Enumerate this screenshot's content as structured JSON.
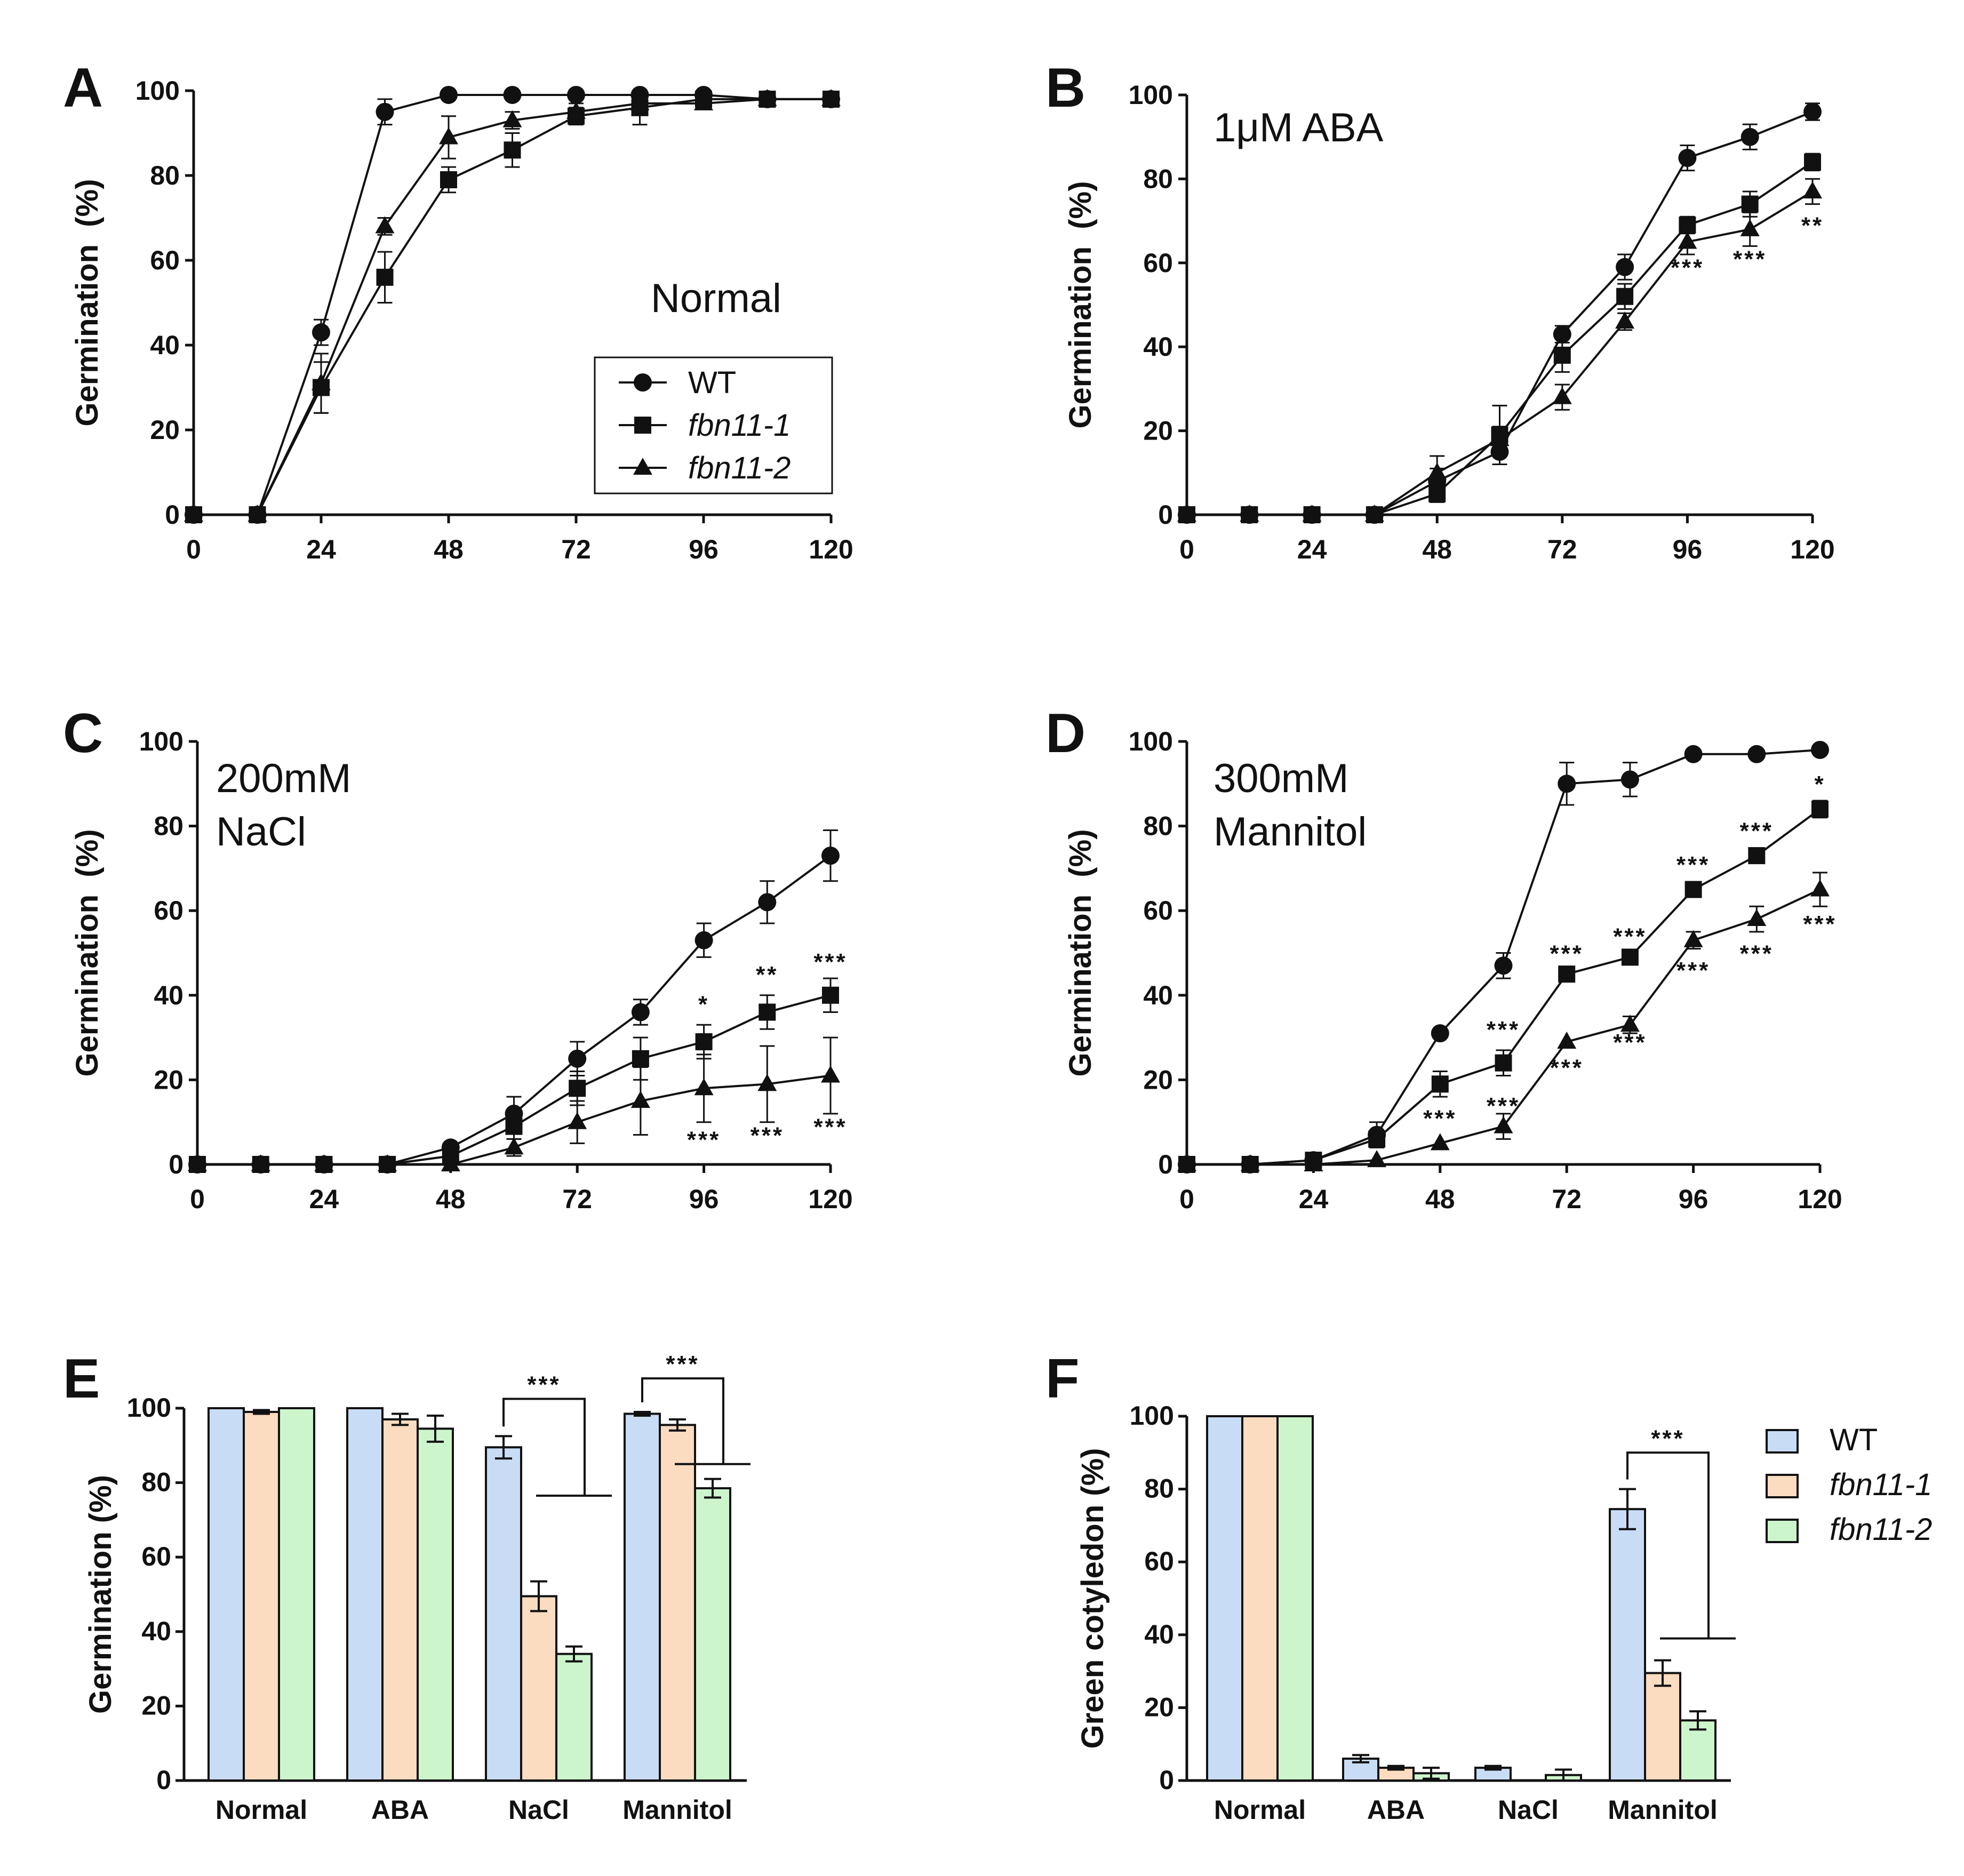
{
  "figure": {
    "panel_labels": [
      "A",
      "B",
      "C",
      "D",
      "E",
      "F"
    ]
  },
  "colors": {
    "line": "#111111",
    "wt_fill": "#c9dcf5",
    "fbn11_1_fill": "#fbdcc0",
    "fbn11_2_fill": "#ccf5cc"
  },
  "chart_data": [
    {
      "panel": "A",
      "type": "line",
      "title": "",
      "condition_lines": [
        "Normal"
      ],
      "xlabel": "",
      "ylabel": "Germination  (%)",
      "xlim": [
        0,
        120
      ],
      "ylim": [
        0,
        100
      ],
      "xticks": [
        "0",
        "24",
        "48",
        "72",
        "96",
        "120"
      ],
      "yticks": [
        "0",
        "20",
        "40",
        "60",
        "80",
        "100"
      ],
      "legend": [
        {
          "name": "WT",
          "marker": "circle",
          "italic": false
        },
        {
          "name": "fbn11-1",
          "marker": "square",
          "italic": true
        },
        {
          "name": "fbn11-2",
          "marker": "triangle",
          "italic": true
        }
      ],
      "series": [
        {
          "name": "WT",
          "marker": "circle",
          "x": [
            0,
            12,
            24,
            36,
            48,
            60,
            72,
            84,
            96,
            108,
            120
          ],
          "y": [
            0,
            0,
            43,
            95,
            99,
            99,
            99,
            99,
            99,
            98,
            98
          ],
          "err": [
            0,
            0,
            3,
            3,
            0,
            0,
            0,
            0,
            0,
            1,
            1
          ]
        },
        {
          "name": "fbn11-1",
          "marker": "square",
          "x": [
            0,
            12,
            24,
            36,
            48,
            60,
            72,
            84,
            96,
            108,
            120
          ],
          "y": [
            0,
            0,
            30,
            56,
            79,
            86,
            94,
            96,
            98,
            98,
            98
          ],
          "err": [
            0,
            0,
            6,
            6,
            3,
            4,
            2,
            4,
            1,
            1,
            1
          ]
        },
        {
          "name": "fbn11-2",
          "marker": "triangle",
          "x": [
            0,
            12,
            24,
            36,
            48,
            60,
            72,
            84,
            96,
            108,
            120
          ],
          "y": [
            0,
            0,
            31,
            68,
            89,
            93,
            95,
            97,
            97,
            98,
            98
          ],
          "err": [
            0,
            0,
            7,
            2,
            5,
            2,
            2,
            1,
            1,
            1,
            1
          ]
        }
      ],
      "annotations": []
    },
    {
      "panel": "B",
      "type": "line",
      "title": "",
      "condition_lines": [
        "1μM ABA"
      ],
      "xlabel": "",
      "ylabel": "Germination  (%)",
      "xlim": [
        0,
        120
      ],
      "ylim": [
        0,
        100
      ],
      "xticks": [
        "0",
        "24",
        "48",
        "72",
        "96",
        "120"
      ],
      "yticks": [
        "0",
        "20",
        "40",
        "60",
        "80",
        "100"
      ],
      "series": [
        {
          "name": "WT",
          "marker": "circle",
          "x": [
            0,
            12,
            24,
            36,
            48,
            60,
            72,
            84,
            96,
            108,
            120
          ],
          "y": [
            0,
            0,
            0,
            0,
            8,
            15,
            43,
            59,
            85,
            90,
            96
          ],
          "err": [
            0,
            0,
            0,
            0,
            3,
            3,
            2,
            3,
            3,
            3,
            2
          ]
        },
        {
          "name": "fbn11-1",
          "marker": "square",
          "x": [
            0,
            12,
            24,
            36,
            48,
            60,
            72,
            84,
            96,
            108,
            120
          ],
          "y": [
            0,
            0,
            0,
            0,
            5,
            19,
            38,
            52,
            69,
            74,
            84
          ],
          "err": [
            0,
            0,
            0,
            0,
            2,
            7,
            4,
            3,
            2,
            3,
            2
          ]
        },
        {
          "name": "fbn11-2",
          "marker": "triangle",
          "x": [
            0,
            12,
            24,
            36,
            48,
            60,
            72,
            84,
            96,
            108,
            120
          ],
          "y": [
            0,
            0,
            0,
            0,
            10,
            18,
            28,
            46,
            65,
            68,
            77
          ],
          "err": [
            0,
            0,
            0,
            0,
            4,
            3,
            3,
            2,
            3,
            4,
            3
          ]
        }
      ],
      "annotations": [
        {
          "text": "***",
          "x": 96,
          "y": 57
        },
        {
          "text": "***",
          "x": 108,
          "y": 59
        },
        {
          "text": "**",
          "x": 120,
          "y": 67
        }
      ]
    },
    {
      "panel": "C",
      "type": "line",
      "title": "",
      "condition_lines": [
        "200mM",
        "NaCl"
      ],
      "xlabel": "",
      "ylabel": "Germination  (%)",
      "xlim": [
        0,
        120
      ],
      "ylim": [
        0,
        100
      ],
      "xticks": [
        "0",
        "24",
        "48",
        "72",
        "96",
        "120"
      ],
      "yticks": [
        "0",
        "20",
        "40",
        "60",
        "80",
        "100"
      ],
      "series": [
        {
          "name": "WT",
          "marker": "circle",
          "x": [
            0,
            12,
            24,
            36,
            48,
            60,
            72,
            84,
            96,
            108,
            120
          ],
          "y": [
            0,
            0,
            0,
            0,
            4,
            12,
            25,
            36,
            53,
            62,
            73
          ],
          "err": [
            0,
            0,
            0,
            0,
            1,
            4,
            4,
            3,
            4,
            5,
            6
          ]
        },
        {
          "name": "fbn11-1",
          "marker": "square",
          "x": [
            0,
            12,
            24,
            36,
            48,
            60,
            72,
            84,
            96,
            108,
            120
          ],
          "y": [
            0,
            0,
            0,
            0,
            2,
            9,
            18,
            25,
            29,
            36,
            40
          ],
          "err": [
            0,
            0,
            0,
            0,
            1,
            3,
            4,
            5,
            4,
            4,
            4
          ]
        },
        {
          "name": "fbn11-2",
          "marker": "triangle",
          "x": [
            0,
            12,
            24,
            36,
            48,
            60,
            72,
            84,
            96,
            108,
            120
          ],
          "y": [
            0,
            0,
            0,
            0,
            0,
            4,
            10,
            15,
            18,
            19,
            21
          ],
          "err": [
            0,
            0,
            0,
            0,
            0,
            2,
            5,
            8,
            8,
            9,
            9
          ]
        }
      ],
      "annotations": [
        {
          "text": "*",
          "x": 96,
          "y": 36
        },
        {
          "text": "**",
          "x": 108,
          "y": 43
        },
        {
          "text": "***",
          "x": 120,
          "y": 46
        },
        {
          "text": "***",
          "x": 96,
          "y": 4
        },
        {
          "text": "***",
          "x": 108,
          "y": 5
        },
        {
          "text": "***",
          "x": 120,
          "y": 7
        }
      ]
    },
    {
      "panel": "D",
      "type": "line",
      "title": "",
      "condition_lines": [
        "300mM",
        "Mannitol"
      ],
      "xlabel": "",
      "ylabel": "Germination  (%)",
      "xlim": [
        0,
        120
      ],
      "ylim": [
        0,
        100
      ],
      "xticks": [
        "0",
        "24",
        "48",
        "72",
        "96",
        "120"
      ],
      "yticks": [
        "0",
        "20",
        "40",
        "60",
        "80",
        "100"
      ],
      "series": [
        {
          "name": "WT",
          "marker": "circle",
          "x": [
            0,
            12,
            24,
            36,
            48,
            60,
            72,
            84,
            96,
            108,
            120
          ],
          "y": [
            0,
            0,
            1,
            7,
            31,
            47,
            90,
            91,
            97,
            97,
            98
          ],
          "err": [
            0,
            1,
            0,
            3,
            0,
            3,
            5,
            4,
            0,
            0,
            0
          ]
        },
        {
          "name": "fbn11-1",
          "marker": "square",
          "x": [
            0,
            12,
            24,
            36,
            48,
            60,
            72,
            84,
            96,
            108,
            120
          ],
          "y": [
            0,
            0,
            1,
            6,
            19,
            24,
            45,
            49,
            65,
            73,
            84
          ],
          "err": [
            0,
            0,
            0,
            2,
            3,
            3,
            1,
            1,
            1,
            1,
            2
          ]
        },
        {
          "name": "fbn11-2",
          "marker": "triangle",
          "x": [
            0,
            12,
            24,
            36,
            48,
            60,
            72,
            84,
            96,
            108,
            120
          ],
          "y": [
            0,
            0,
            0,
            1,
            5,
            9,
            29,
            33,
            53,
            58,
            65
          ],
          "err": [
            0,
            0,
            0,
            0,
            0,
            3,
            0,
            2,
            2,
            3,
            4
          ]
        }
      ],
      "annotations": [
        {
          "text": "*",
          "x": 120,
          "y": 88
        },
        {
          "text": "***",
          "x": 108,
          "y": 77
        },
        {
          "text": "***",
          "x": 96,
          "y": 69
        },
        {
          "text": "***",
          "x": 84,
          "y": 52
        },
        {
          "text": "***",
          "x": 72,
          "y": 48
        },
        {
          "text": "***",
          "x": 60,
          "y": 30
        },
        {
          "text": "***",
          "x": 120,
          "y": 55
        },
        {
          "text": "***",
          "x": 108,
          "y": 48
        },
        {
          "text": "***",
          "x": 96,
          "y": 44
        },
        {
          "text": "***",
          "x": 84,
          "y": 27
        },
        {
          "text": "***",
          "x": 72,
          "y": 21
        },
        {
          "text": "***",
          "x": 60,
          "y": 12
        },
        {
          "text": "***",
          "x": 48,
          "y": 9
        }
      ]
    },
    {
      "panel": "E",
      "type": "bar",
      "title": "",
      "xlabel": "",
      "ylabel": "Germination (%)",
      "ylim": [
        0,
        100
      ],
      "yticks": [
        "0",
        "20",
        "40",
        "60",
        "80",
        "100"
      ],
      "categories": [
        "Normal",
        "ABA",
        "NaCl",
        "Mannitol"
      ],
      "series": [
        {
          "name": "WT",
          "values": [
            100,
            100,
            89.5,
            98.5
          ],
          "err": [
            0,
            0,
            3,
            0.5
          ]
        },
        {
          "name": "fbn11-1",
          "values": [
            99,
            97,
            49.5,
            95.5
          ],
          "err": [
            0.5,
            1.5,
            4,
            1.5
          ]
        },
        {
          "name": "fbn11-2",
          "values": [
            100,
            94.5,
            34,
            78.5
          ],
          "err": [
            0,
            3.5,
            2,
            2.5
          ]
        }
      ],
      "significance": [
        {
          "category": "NaCl",
          "text": "***",
          "y": 102.5,
          "lower_y": 76.5
        },
        {
          "category": "Mannitol",
          "text": "***",
          "y": 108,
          "lower_y": 85
        }
      ]
    },
    {
      "panel": "F",
      "type": "bar",
      "title": "",
      "xlabel": "",
      "ylabel": "Green cotyledon (%)",
      "ylim": [
        0,
        100
      ],
      "yticks": [
        "0",
        "20",
        "40",
        "60",
        "80",
        "100"
      ],
      "categories": [
        "Normal",
        "ABA",
        "NaCl",
        "Mannitol"
      ],
      "legend": [
        {
          "name": "WT",
          "italic": false
        },
        {
          "name": "fbn11-1",
          "italic": true
        },
        {
          "name": "fbn11-2",
          "italic": true
        }
      ],
      "series": [
        {
          "name": "WT",
          "values": [
            100,
            6,
            3.5,
            74.5
          ],
          "err": [
            0,
            1,
            0.5,
            5.5
          ]
        },
        {
          "name": "fbn11-1",
          "values": [
            100,
            3.5,
            0,
            29.5
          ],
          "err": [
            0,
            0.5,
            0,
            3.5
          ]
        },
        {
          "name": "fbn11-2",
          "values": [
            100,
            2,
            1.5,
            16.5
          ],
          "err": [
            0,
            1.5,
            1.5,
            2.5
          ]
        }
      ],
      "significance": [
        {
          "category": "Mannitol",
          "text": "***",
          "y": 90,
          "lower_y": 39
        }
      ]
    }
  ]
}
